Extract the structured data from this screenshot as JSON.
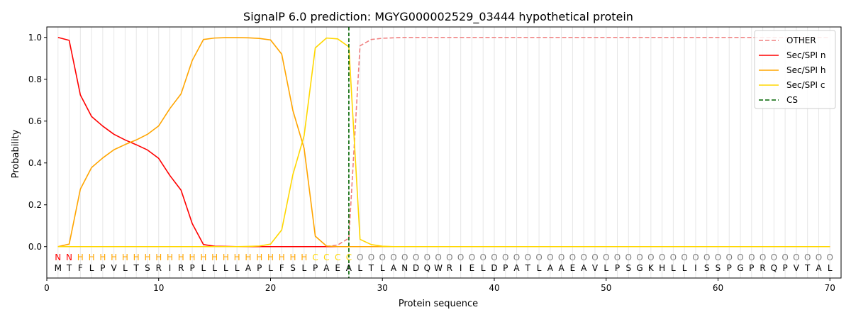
{
  "chart_data": {
    "type": "line",
    "title": "SignalP 6.0 prediction: MGYG000002529_03444 hypothetical protein",
    "xlabel": "Protein sequence",
    "ylabel": "Probability",
    "xlim": [
      0,
      71
    ],
    "ylim": [
      -0.15,
      1.05
    ],
    "x_ticks": [
      0,
      10,
      20,
      30,
      40,
      50,
      60,
      70
    ],
    "y_ticks": [
      0.0,
      0.2,
      0.4,
      0.6,
      0.8,
      1.0
    ],
    "x_tick_labels": [
      "0",
      "10",
      "20",
      "30",
      "40",
      "50",
      "60",
      "70"
    ],
    "y_tick_labels": [
      "0.0",
      "0.2",
      "0.4",
      "0.6",
      "0.8",
      "1.0"
    ],
    "grid": "vertical lines at each residue",
    "legend_position": "top-right",
    "sequence": [
      "M",
      "T",
      "F",
      "L",
      "P",
      "V",
      "L",
      "T",
      "S",
      "R",
      "I",
      "R",
      "P",
      "L",
      "L",
      "L",
      "L",
      "A",
      "P",
      "L",
      "F",
      "S",
      "L",
      "P",
      "A",
      "E",
      "A",
      "L",
      "T",
      "L",
      "A",
      "N",
      "D",
      "Q",
      "W",
      "R",
      "I",
      "E",
      "L",
      "D",
      "P",
      "A",
      "T",
      "L",
      "A",
      "A",
      "E",
      "A",
      "V",
      "L",
      "P",
      "S",
      "G",
      "K",
      "H",
      "L",
      "L",
      "I",
      "S",
      "S",
      "P",
      "G",
      "P",
      "R",
      "Q",
      "P",
      "V",
      "T",
      "A",
      "L"
    ],
    "region_labels": [
      "N",
      "N",
      "H",
      "H",
      "H",
      "H",
      "H",
      "H",
      "H",
      "H",
      "H",
      "H",
      "H",
      "H",
      "H",
      "H",
      "H",
      "H",
      "H",
      "H",
      "H",
      "H",
      "H",
      "C",
      "C",
      "C",
      "C",
      "O",
      "O",
      "O",
      "O",
      "O",
      "O",
      "O",
      "O",
      "O",
      "O",
      "O",
      "O",
      "O",
      "O",
      "O",
      "O",
      "O",
      "O",
      "O",
      "O",
      "O",
      "O",
      "O",
      "O",
      "O",
      "O",
      "O",
      "O",
      "O",
      "O",
      "O",
      "O",
      "O",
      "O",
      "O",
      "O",
      "O",
      "O",
      "O",
      "O",
      "O",
      "O",
      "O"
    ],
    "region_colors": {
      "N": "#ff0000",
      "H": "#ffa500",
      "C": "#ffd700",
      "O": "#808080"
    },
    "cleavage_site": 27,
    "series": [
      {
        "name": "OTHER",
        "color": "#f08080",
        "dash": "dashed",
        "values": [
          0.0,
          0.0,
          0.0,
          0.0,
          0.0,
          0.0,
          0.0,
          0.0,
          0.0,
          0.0,
          0.0,
          0.0,
          0.0,
          0.0,
          0.0,
          0.0,
          0.0,
          0.0,
          0.0,
          0.0,
          0.0,
          0.0,
          0.0,
          0.0,
          0.0,
          0.008,
          0.04,
          0.96,
          0.99,
          0.996,
          0.998,
          1.0,
          1.0,
          1.0,
          1.0,
          1.0,
          1.0,
          1.0,
          1.0,
          1.0,
          1.0,
          1.0,
          1.0,
          1.0,
          1.0,
          1.0,
          1.0,
          1.0,
          1.0,
          1.0,
          1.0,
          1.0,
          1.0,
          1.0,
          1.0,
          1.0,
          1.0,
          1.0,
          1.0,
          1.0,
          1.0,
          1.0,
          1.0,
          1.0,
          1.0,
          1.0,
          1.0,
          1.0,
          1.0,
          1.0
        ]
      },
      {
        "name": "Sec/SPI n",
        "color": "#ff0000",
        "dash": "solid",
        "values": [
          1.0,
          0.986,
          0.725,
          0.622,
          0.576,
          0.537,
          0.51,
          0.487,
          0.462,
          0.422,
          0.34,
          0.27,
          0.11,
          0.01,
          0.002,
          0.001,
          0.0,
          0.0,
          0.0,
          0.0,
          0.0,
          0.0,
          0.0,
          0.0,
          0.0,
          0.0,
          0.0,
          0.0,
          0.0,
          0.0,
          0.0,
          0.0,
          0.0,
          0.0,
          0.0,
          0.0,
          0.0,
          0.0,
          0.0,
          0.0,
          0.0,
          0.0,
          0.0,
          0.0,
          0.0,
          0.0,
          0.0,
          0.0,
          0.0,
          0.0,
          0.0,
          0.0,
          0.0,
          0.0,
          0.0,
          0.0,
          0.0,
          0.0,
          0.0,
          0.0,
          0.0,
          0.0,
          0.0,
          0.0,
          0.0,
          0.0,
          0.0,
          0.0,
          0.0,
          0.0
        ]
      },
      {
        "name": "Sec/SPI h",
        "color": "#ffa500",
        "dash": "solid",
        "values": [
          0.0,
          0.012,
          0.275,
          0.378,
          0.424,
          0.463,
          0.488,
          0.51,
          0.537,
          0.577,
          0.66,
          0.73,
          0.89,
          0.99,
          0.997,
          0.999,
          0.999,
          0.998,
          0.995,
          0.988,
          0.92,
          0.65,
          0.47,
          0.05,
          0.003,
          0.0,
          0.0,
          0.0,
          0.0,
          0.0,
          0.0,
          0.0,
          0.0,
          0.0,
          0.0,
          0.0,
          0.0,
          0.0,
          0.0,
          0.0,
          0.0,
          0.0,
          0.0,
          0.0,
          0.0,
          0.0,
          0.0,
          0.0,
          0.0,
          0.0,
          0.0,
          0.0,
          0.0,
          0.0,
          0.0,
          0.0,
          0.0,
          0.0,
          0.0,
          0.0,
          0.0,
          0.0,
          0.0,
          0.0,
          0.0,
          0.0,
          0.0,
          0.0,
          0.0,
          0.0
        ]
      },
      {
        "name": "Sec/SPI c",
        "color": "#ffd700",
        "dash": "solid",
        "values": [
          0.0,
          0.0,
          0.0,
          0.0,
          0.0,
          0.0,
          0.0,
          0.0,
          0.0,
          0.0,
          0.0,
          0.0,
          0.0,
          0.0,
          0.0,
          0.0,
          0.0,
          0.001,
          0.003,
          0.012,
          0.08,
          0.345,
          0.53,
          0.95,
          0.997,
          0.993,
          0.955,
          0.035,
          0.01,
          0.002,
          0.0,
          0.0,
          0.0,
          0.0,
          0.0,
          0.0,
          0.0,
          0.0,
          0.0,
          0.0,
          0.0,
          0.0,
          0.0,
          0.0,
          0.0,
          0.0,
          0.0,
          0.0,
          0.0,
          0.0,
          0.0,
          0.0,
          0.0,
          0.0,
          0.0,
          0.0,
          0.0,
          0.0,
          0.0,
          0.0,
          0.0,
          0.0,
          0.0,
          0.0,
          0.0,
          0.0,
          0.0,
          0.0,
          0.0,
          0.0
        ]
      }
    ],
    "legend": [
      {
        "label": "OTHER",
        "color": "#f08080",
        "dash": "dashed"
      },
      {
        "label": "Sec/SPI n",
        "color": "#ff0000",
        "dash": "solid"
      },
      {
        "label": "Sec/SPI h",
        "color": "#ffa500",
        "dash": "solid"
      },
      {
        "label": "Sec/SPI c",
        "color": "#ffd700",
        "dash": "solid"
      },
      {
        "label": "CS",
        "color": "#006400",
        "dash": "dashed"
      }
    ]
  }
}
